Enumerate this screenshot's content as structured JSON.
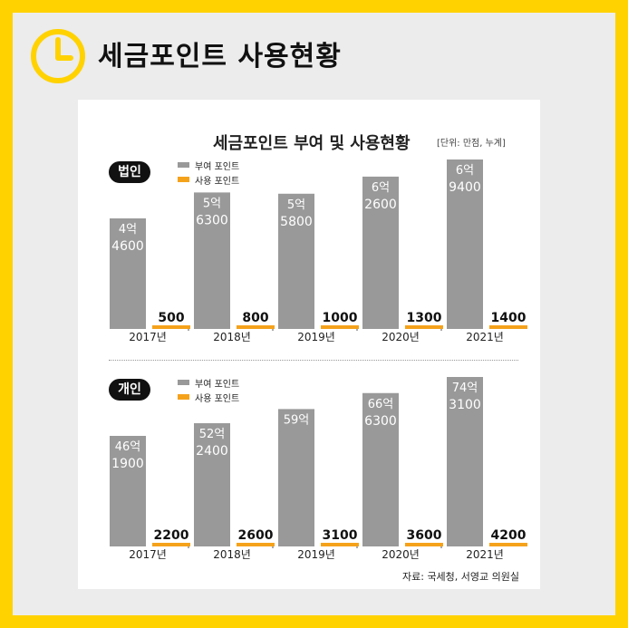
{
  "page": {
    "headline": "세금포인트 사용현황",
    "chart_title": "세금포인트 부여 및 사용현황",
    "unit": "[단위: 만점, 누계]",
    "source": "자료: 국세청, 서영교 의원실",
    "colors": {
      "frame": "#FFD200",
      "granted": "#999999",
      "used": "#F5A21B",
      "background": "#ECECEC"
    },
    "icon": "clock-icon"
  },
  "legend": {
    "granted": "부여 포인트",
    "used": "사용 포인트"
  },
  "chart_data": [
    {
      "type": "bar",
      "panel_label": "법인",
      "categories": [
        "2017년",
        "2018년",
        "2019년",
        "2020년",
        "2021년"
      ],
      "series": [
        {
          "name": "부여 포인트",
          "values": [
            46000,
            56300,
            55800,
            62600,
            69400
          ],
          "labels": [
            [
              "4억",
              "4600"
            ],
            [
              "5억",
              "6300"
            ],
            [
              "5억",
              "5800"
            ],
            [
              "6억",
              "2600"
            ],
            [
              "6억",
              "9400"
            ]
          ]
        },
        {
          "name": "사용 포인트",
          "values": [
            500,
            800,
            1000,
            1300,
            1400
          ],
          "labels": [
            [
              "500"
            ],
            [
              "800"
            ],
            [
              "1000"
            ],
            [
              "1300"
            ],
            [
              "1400"
            ]
          ]
        }
      ]
    },
    {
      "type": "bar",
      "panel_label": "개인",
      "categories": [
        "2017년",
        "2018년",
        "2019년",
        "2020년",
        "2021년"
      ],
      "series": [
        {
          "name": "부여 포인트",
          "values": [
            461900,
            522400,
            590000,
            666300,
            743100
          ],
          "labels": [
            [
              "46억",
              "1900"
            ],
            [
              "52억",
              "2400"
            ],
            [
              "59억"
            ],
            [
              "66억",
              "6300"
            ],
            [
              "74억",
              "3100"
            ]
          ]
        },
        {
          "name": "사용 포인트",
          "values": [
            2200,
            2600,
            3100,
            3600,
            4200
          ],
          "labels": [
            [
              "2200"
            ],
            [
              "2600"
            ],
            [
              "3100"
            ],
            [
              "3600"
            ],
            [
              "4200"
            ]
          ]
        }
      ]
    }
  ]
}
